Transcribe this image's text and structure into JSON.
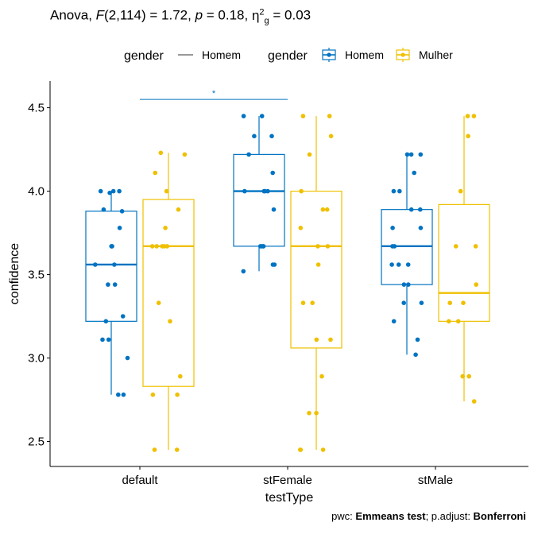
{
  "title": {
    "prefix": "Anova, ",
    "F_symbol": "F",
    "F_args": "(2,114) = 1.72, ",
    "p_symbol": "p",
    "p_value": " = 0.18, ",
    "eta_symbol": "η",
    "eta_sup": "2",
    "eta_sub": "g",
    "eta_value": " = 0.03"
  },
  "legend": {
    "line_title": "gender",
    "line_label": "Homem",
    "box_title": "gender",
    "box_labels": [
      "Homem",
      "Mulher"
    ]
  },
  "caption": {
    "prefix": "pwc: ",
    "test": "Emmeans test",
    "middle": "; p.adjust: ",
    "adjust": "Bonferroni"
  },
  "chart_data": {
    "type": "boxplot",
    "xlabel": "testType",
    "ylabel": "confidence",
    "categories": [
      "default",
      "stFemale",
      "stMale"
    ],
    "ylim": [
      2.35,
      4.66
    ],
    "yticks": [
      2.5,
      3.0,
      3.5,
      4.0,
      4.5
    ],
    "ytick_labels": [
      "2.5",
      "3.0",
      "3.5",
      "4.0",
      "4.5"
    ],
    "grid": false,
    "legend_position": "top",
    "colors": {
      "Homem": "#0073C2",
      "Mulher": "#EFC000"
    },
    "series": [
      {
        "name": "Homem",
        "boxes": [
          {
            "category": "default",
            "min": 2.78,
            "q1": 3.22,
            "median": 3.56,
            "q3": 3.88,
            "max": 4.0
          },
          {
            "category": "stFemale",
            "min": 3.52,
            "q1": 3.67,
            "median": 4.0,
            "q3": 4.22,
            "max": 4.45
          },
          {
            "category": "stMale",
            "min": 3.02,
            "q1": 3.44,
            "median": 3.67,
            "q3": 3.89,
            "max": 4.22
          }
        ],
        "points": [
          [
            4.0,
            4.0,
            4.0,
            3.99,
            3.89,
            3.88,
            3.78,
            3.67,
            3.67,
            3.67,
            3.56,
            3.56,
            3.44,
            3.44,
            3.25,
            3.22,
            3.11,
            3.11,
            3.0,
            2.78,
            2.78
          ],
          [
            4.45,
            4.45,
            4.33,
            4.33,
            4.22,
            4.11,
            4.0,
            4.0,
            4.0,
            4.0,
            3.89,
            3.67,
            3.67,
            3.67,
            3.67,
            3.56,
            3.56,
            3.52
          ],
          [
            4.22,
            4.22,
            4.22,
            4.11,
            4.0,
            4.0,
            3.89,
            3.89,
            3.78,
            3.78,
            3.67,
            3.67,
            3.56,
            3.56,
            3.56,
            3.44,
            3.44,
            3.33,
            3.33,
            3.22,
            3.11,
            3.02
          ]
        ]
      },
      {
        "name": "Mulher",
        "boxes": [
          {
            "category": "default",
            "min": 2.45,
            "q1": 2.83,
            "median": 3.67,
            "q3": 3.95,
            "max": 4.23
          },
          {
            "category": "stFemale",
            "min": 2.45,
            "q1": 3.06,
            "median": 3.67,
            "q3": 4.0,
            "max": 4.45
          },
          {
            "category": "stMale",
            "min": 2.74,
            "q1": 3.22,
            "median": 3.39,
            "q3": 3.92,
            "max": 4.45
          }
        ],
        "points": [
          [
            4.23,
            4.22,
            4.11,
            4.0,
            3.89,
            3.78,
            3.67,
            3.67,
            3.67,
            3.67,
            3.67,
            3.33,
            3.22,
            2.89,
            2.78,
            2.78,
            2.45,
            2.45
          ],
          [
            4.45,
            4.45,
            4.33,
            4.22,
            4.0,
            3.89,
            3.89,
            3.78,
            3.67,
            3.67,
            3.56,
            3.33,
            3.33,
            3.11,
            3.11,
            2.89,
            2.67,
            2.67,
            2.45,
            2.45,
            2.45
          ],
          [
            4.45,
            4.45,
            4.33,
            4.0,
            3.67,
            3.67,
            3.44,
            3.33,
            3.33,
            3.22,
            3.22,
            2.89,
            2.89,
            2.74
          ]
        ]
      }
    ],
    "significance": [
      {
        "from": "default",
        "to": "stFemale",
        "group": "Homem",
        "y": 4.55,
        "label": "*"
      }
    ]
  }
}
